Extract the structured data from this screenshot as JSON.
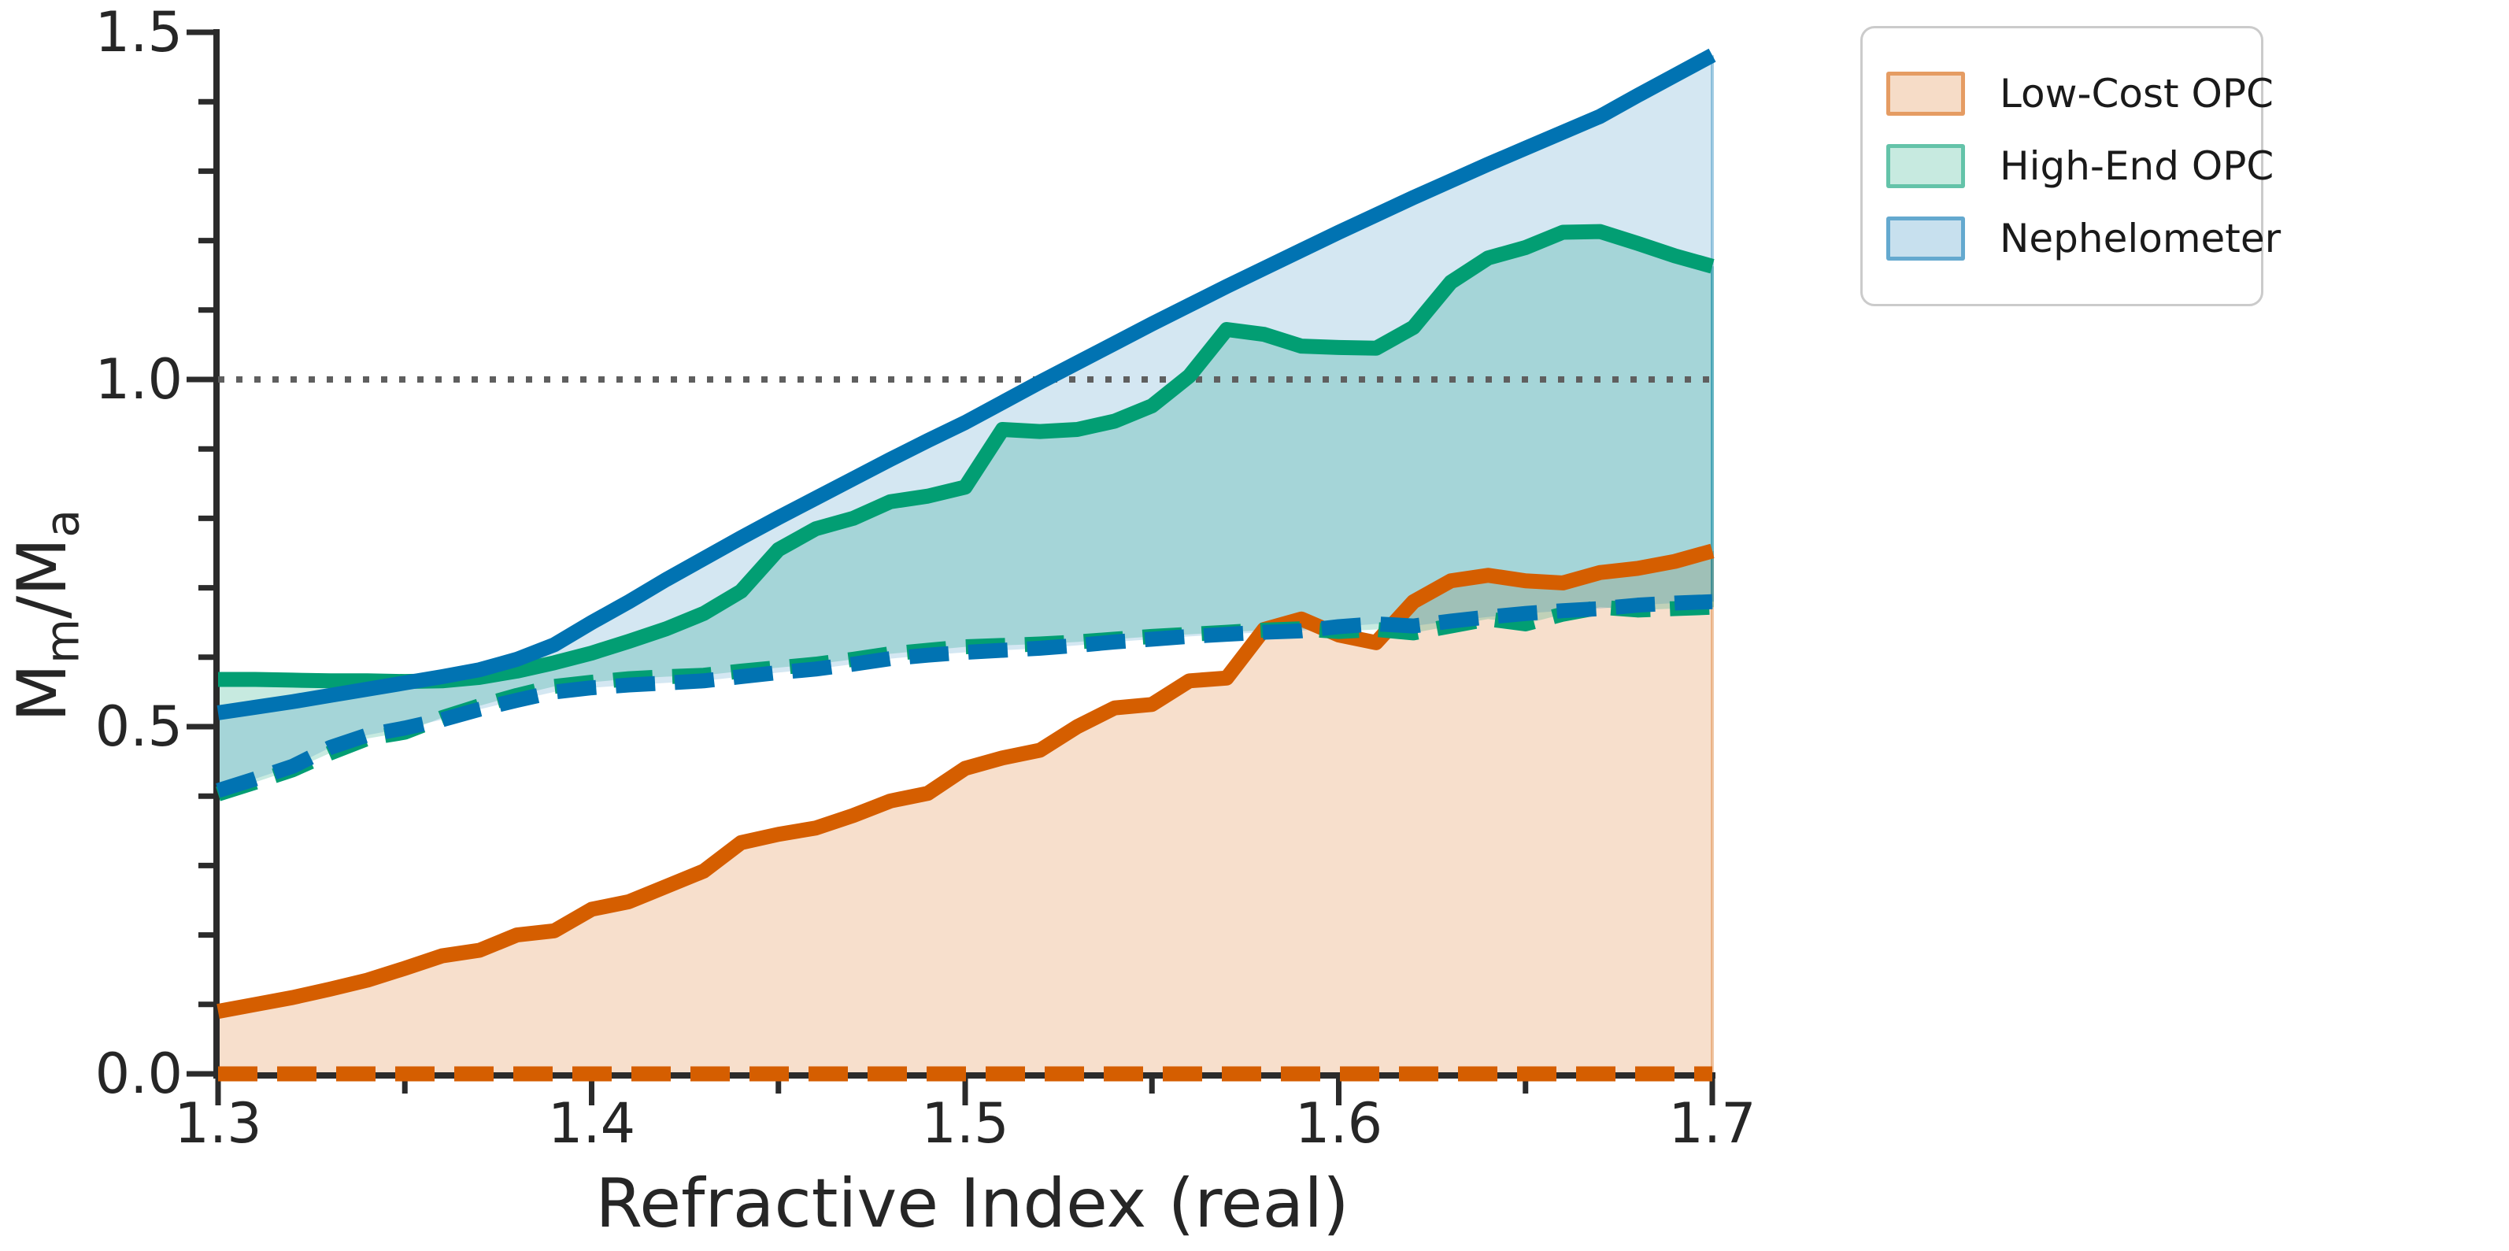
{
  "chart_data": {
    "type": "area",
    "title": "",
    "xlabel": "Refractive Index (real)",
    "ylabel": "Mm/Ma",
    "ylabel_parts": {
      "m1": "M",
      "s1": "m",
      "sep": "/",
      "m2": "M",
      "s2": "a"
    },
    "xlim": [
      1.3,
      1.7
    ],
    "ylim": [
      0.0,
      1.5
    ],
    "xticks": [
      1.3,
      1.4,
      1.5,
      1.6,
      1.7
    ],
    "xticklabels": [
      "1.3",
      "1.4",
      "1.5",
      "1.6",
      "1.7"
    ],
    "x_minor_ticks": [
      1.35,
      1.45,
      1.55,
      1.65
    ],
    "yticks": [
      0.0,
      0.5,
      1.0,
      1.5
    ],
    "yticklabels": [
      "0.0",
      "0.5",
      "1.0",
      "1.5"
    ],
    "y_minor_ticks": [
      0.1,
      0.2,
      0.3,
      0.4,
      0.6,
      0.7,
      0.8,
      0.9,
      1.1,
      1.2,
      1.3,
      1.4
    ],
    "reference_line_y": 1.0,
    "grid": false,
    "legend_position": "upper right",
    "x": [
      1.3,
      1.31,
      1.32,
      1.33,
      1.34,
      1.35,
      1.36,
      1.37,
      1.38,
      1.39,
      1.4,
      1.41,
      1.42,
      1.43,
      1.44,
      1.45,
      1.46,
      1.47,
      1.48,
      1.49,
      1.5,
      1.51,
      1.52,
      1.53,
      1.54,
      1.55,
      1.56,
      1.57,
      1.58,
      1.59,
      1.6,
      1.61,
      1.62,
      1.63,
      1.64,
      1.65,
      1.66,
      1.67,
      1.68,
      1.69,
      1.7
    ],
    "series": [
      {
        "name": "Low-Cost OPC",
        "color": "#d55e00",
        "fill": "rgba(213,94,0,0.20)",
        "edge": "rgba(213,94,0,0.35)",
        "upper": [
          0.09,
          0.1,
          0.11,
          0.122,
          0.135,
          0.152,
          0.17,
          0.178,
          0.2,
          0.206,
          0.237,
          0.248,
          0.27,
          0.292,
          0.333,
          0.345,
          0.354,
          0.372,
          0.393,
          0.404,
          0.44,
          0.455,
          0.466,
          0.5,
          0.527,
          0.532,
          0.566,
          0.57,
          0.64,
          0.655,
          0.632,
          0.621,
          0.68,
          0.71,
          0.718,
          0.71,
          0.707,
          0.722,
          0.728,
          0.738,
          0.753
        ],
        "lower": [
          0,
          0,
          0,
          0,
          0,
          0,
          0,
          0,
          0,
          0,
          0,
          0,
          0,
          0,
          0,
          0,
          0,
          0,
          0,
          0,
          0,
          0,
          0,
          0,
          0,
          0,
          0,
          0,
          0,
          0,
          0,
          0,
          0,
          0,
          0,
          0,
          0,
          0,
          0,
          0,
          0
        ]
      },
      {
        "name": "High-End OPC",
        "color": "#029e73",
        "fill": "rgba(2,158,115,0.22)",
        "edge": "rgba(2,158,115,0.35)",
        "upper": [
          0.568,
          0.568,
          0.567,
          0.566,
          0.566,
          0.565,
          0.566,
          0.571,
          0.58,
          0.592,
          0.606,
          0.623,
          0.641,
          0.663,
          0.695,
          0.755,
          0.785,
          0.8,
          0.824,
          0.832,
          0.845,
          0.928,
          0.925,
          0.928,
          0.94,
          0.962,
          1.005,
          1.072,
          1.065,
          1.048,
          1.046,
          1.045,
          1.075,
          1.14,
          1.175,
          1.19,
          1.212,
          1.213,
          1.196,
          1.178,
          1.163
        ],
        "lower": [
          0.403,
          0.42,
          0.438,
          0.462,
          0.483,
          0.492,
          0.513,
          0.53,
          0.545,
          0.558,
          0.564,
          0.569,
          0.572,
          0.574,
          0.58,
          0.585,
          0.59,
          0.597,
          0.605,
          0.61,
          0.615,
          0.617,
          0.619,
          0.622,
          0.626,
          0.63,
          0.633,
          0.636,
          0.639,
          0.641,
          0.637,
          0.64,
          0.635,
          0.645,
          0.655,
          0.648,
          0.662,
          0.672,
          0.668,
          0.67,
          0.672
        ]
      },
      {
        "name": "Nephelometer",
        "color": "#0173b2",
        "fill": "rgba(1,115,178,0.17)",
        "edge": "rgba(1,115,178,0.35)",
        "upper": [
          0.52,
          0.528,
          0.536,
          0.545,
          0.554,
          0.563,
          0.572,
          0.582,
          0.597,
          0.618,
          0.65,
          0.68,
          0.712,
          0.742,
          0.772,
          0.801,
          0.829,
          0.857,
          0.885,
          0.912,
          0.938,
          0.967,
          0.996,
          1.024,
          1.052,
          1.08,
          1.107,
          1.134,
          1.16,
          1.186,
          1.212,
          1.237,
          1.262,
          1.286,
          1.31,
          1.333,
          1.356,
          1.379,
          1.409,
          1.438,
          1.467
        ],
        "lower": [
          0.408,
          0.425,
          0.443,
          0.47,
          0.488,
          0.498,
          0.51,
          0.525,
          0.538,
          0.55,
          0.556,
          0.56,
          0.563,
          0.566,
          0.572,
          0.578,
          0.583,
          0.59,
          0.598,
          0.603,
          0.607,
          0.61,
          0.613,
          0.617,
          0.622,
          0.626,
          0.63,
          0.633,
          0.636,
          0.638,
          0.644,
          0.648,
          0.645,
          0.652,
          0.658,
          0.663,
          0.667,
          0.67,
          0.675,
          0.678,
          0.68
        ]
      }
    ]
  },
  "legend": {
    "items": [
      {
        "label": "Low-Cost OPC",
        "swatch_fill": "rgba(213,94,0,0.22)",
        "swatch_border": "rgba(213,94,0,0.50)"
      },
      {
        "label": "High-End OPC",
        "swatch_fill": "rgba(2,158,115,0.22)",
        "swatch_border": "rgba(2,158,115,0.50)"
      },
      {
        "label": "Nephelometer",
        "swatch_fill": "rgba(1,115,178,0.22)",
        "swatch_border": "rgba(1,115,178,0.50)"
      }
    ]
  },
  "style_colors": {
    "spine": "#2b2b2b",
    "tick": "#2b2b2b",
    "reference_line": "#5f5f5f",
    "text": "#262626"
  }
}
